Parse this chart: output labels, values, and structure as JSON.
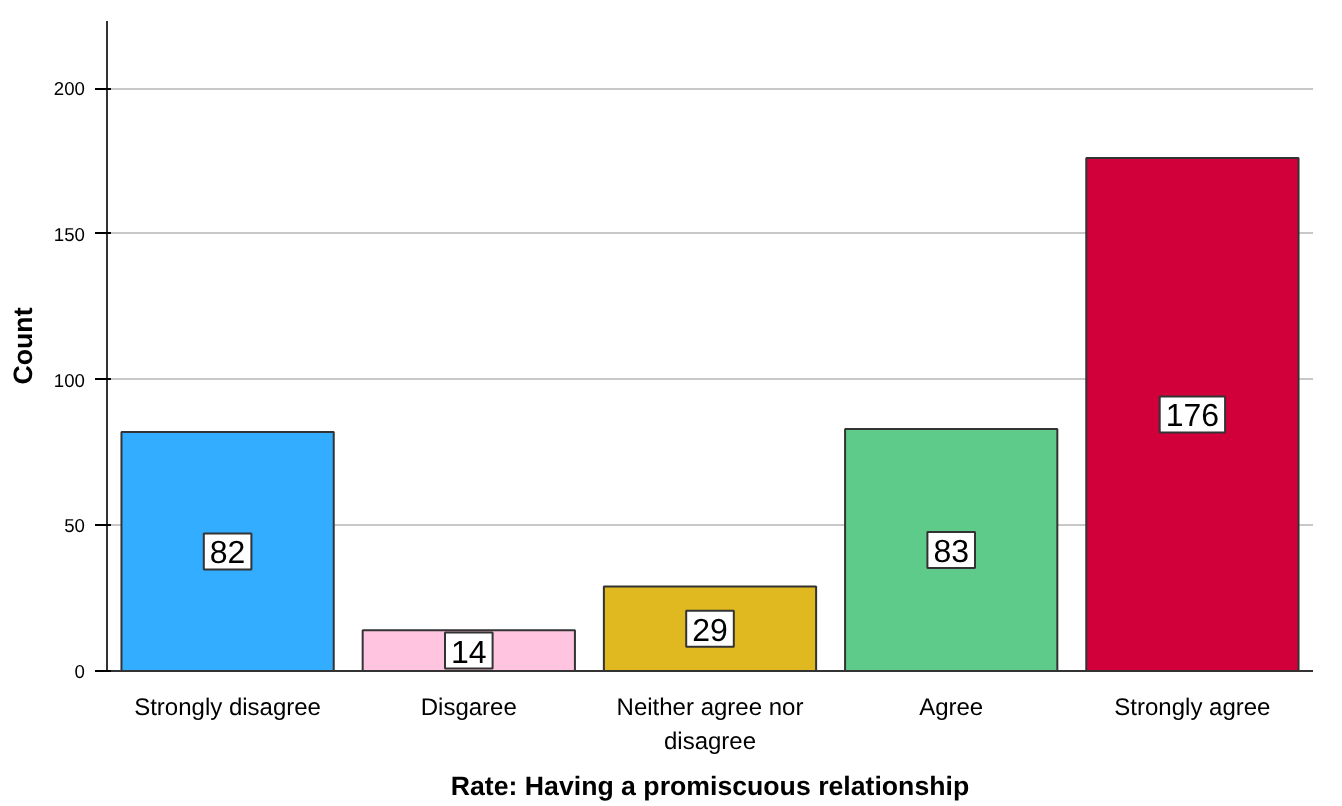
{
  "chart_data": {
    "type": "bar",
    "xlabel": "Rate: Having a promiscuous relationship",
    "ylabel": "Count",
    "categories": [
      "Strongly disagree",
      "Disgaree",
      "Neither agree nor disagree",
      "Agree",
      "Strongly agree"
    ],
    "values": [
      82,
      14,
      29,
      83,
      176
    ],
    "colors": [
      "#33adff",
      "#ffc4e0",
      "#e0b820",
      "#5ecb8a",
      "#d2003a"
    ],
    "ylim": [
      0,
      223
    ],
    "yticks": [
      0,
      50,
      100,
      150,
      200
    ],
    "grid": "y",
    "data_labels": true
  }
}
